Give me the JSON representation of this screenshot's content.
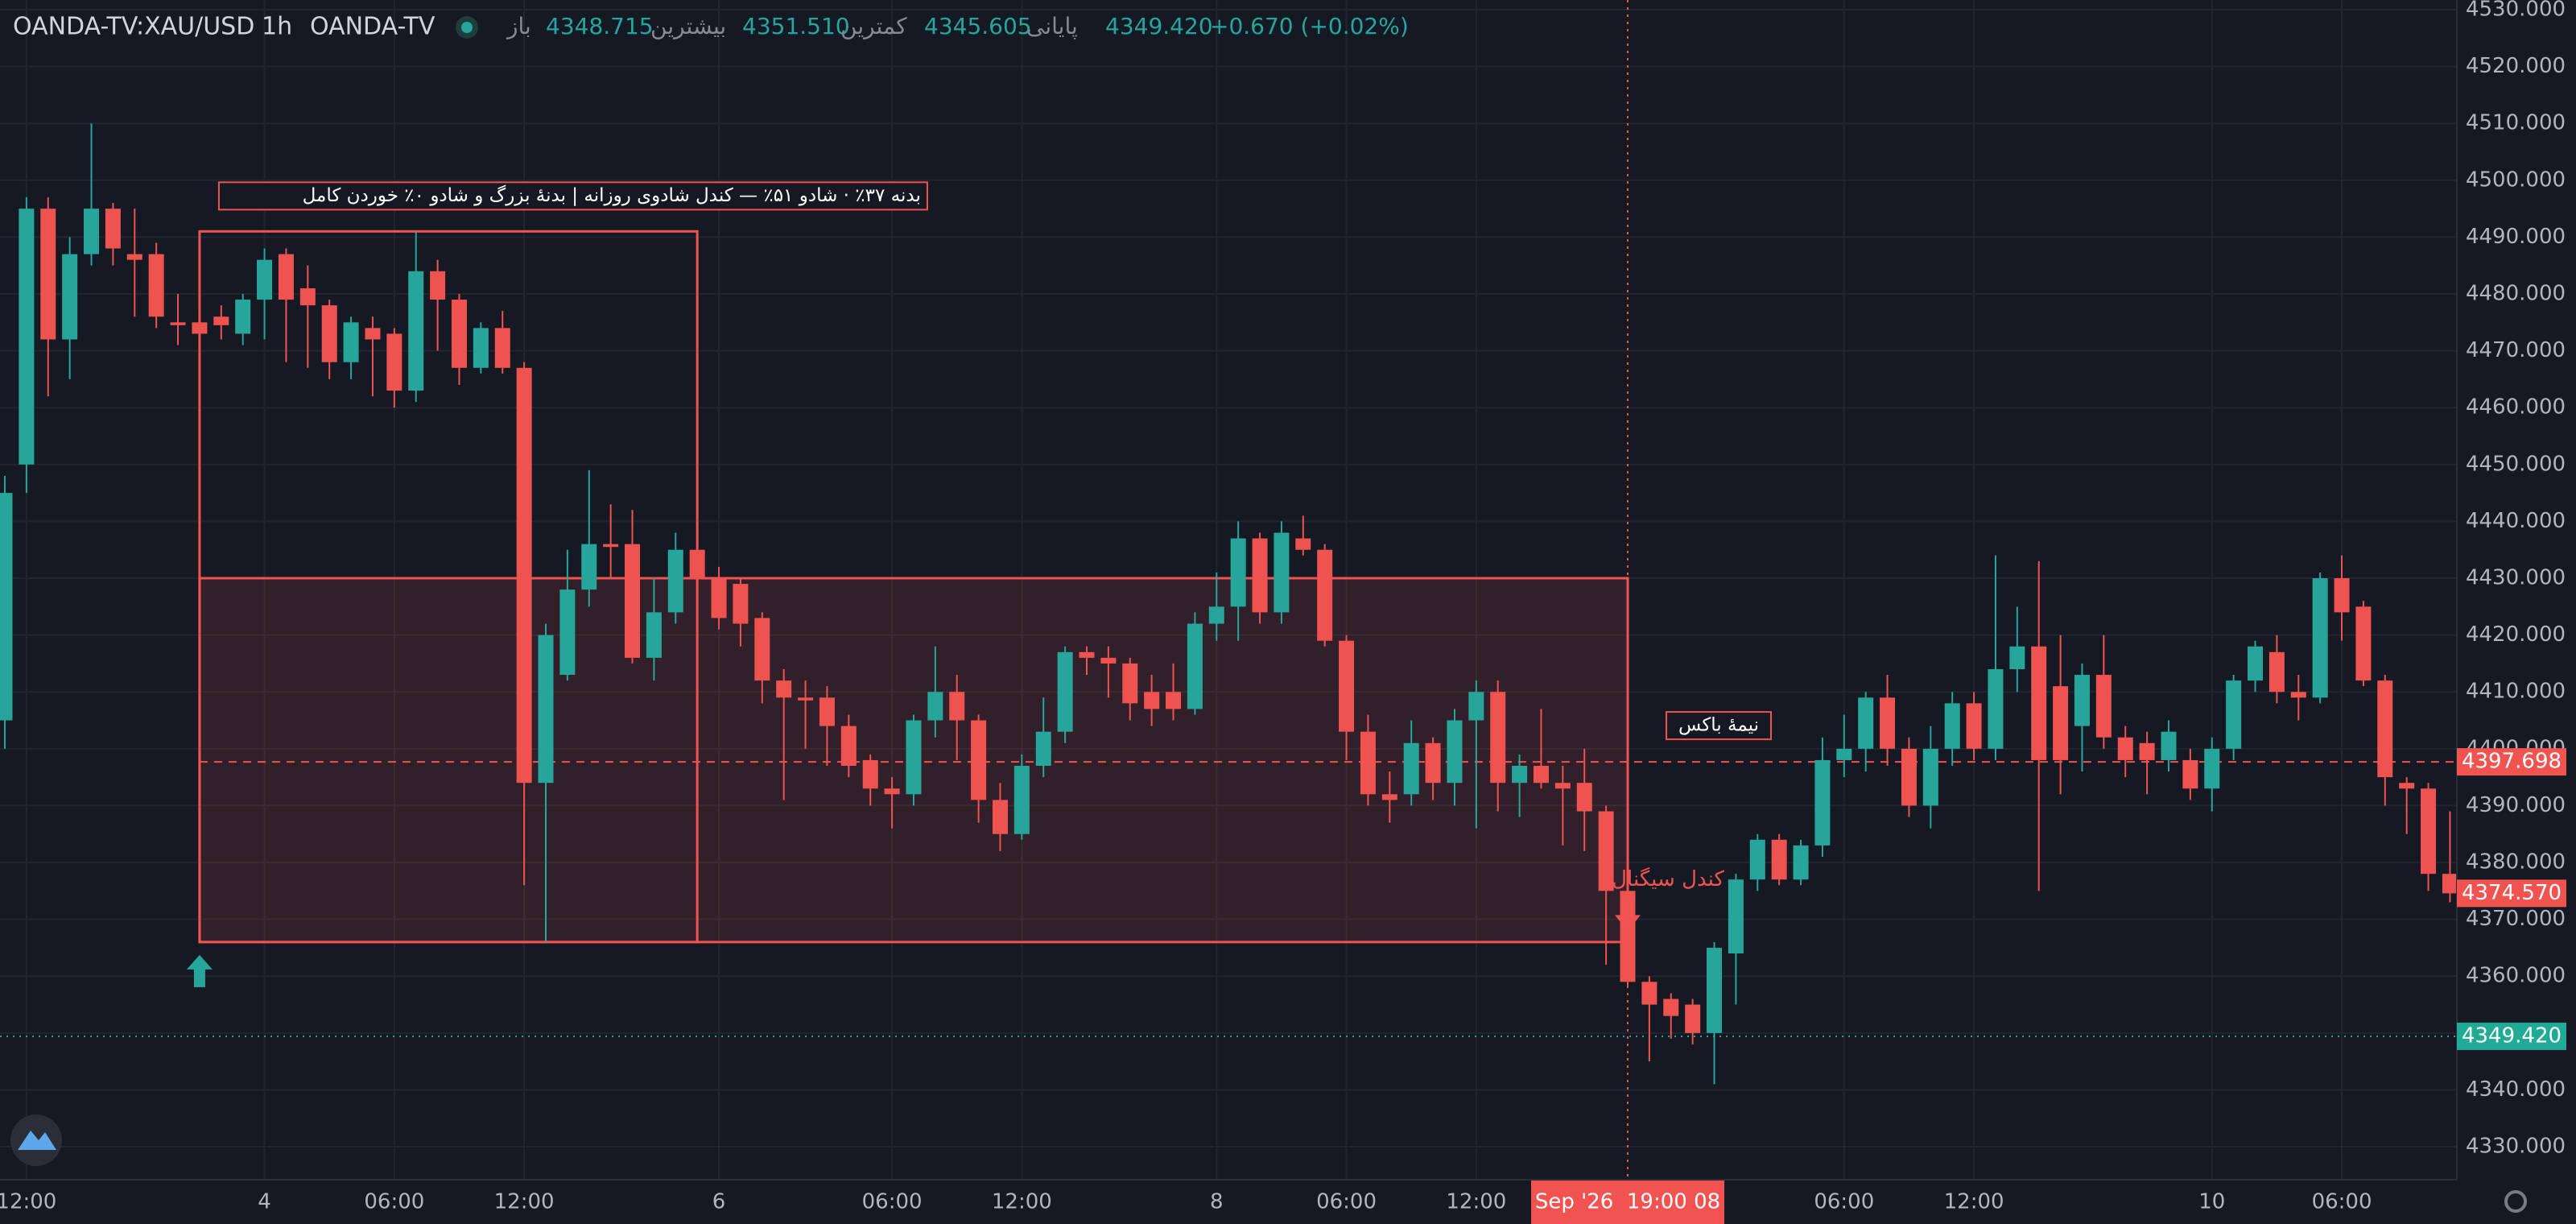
{
  "header": {
    "symbol": "OANDA-TV:XAU/USD",
    "interval": "1h",
    "source": "OANDA-TV",
    "ohlc": [
      {
        "label": "باز",
        "value": "4348.715"
      },
      {
        "label": "بیشترین",
        "value": "4351.510"
      },
      {
        "label": "کمترین",
        "value": "4345.605"
      },
      {
        "label": "پایانی",
        "value": "4349.420"
      }
    ],
    "change": "+0.670 (+0.02%)"
  },
  "chart_data": {
    "type": "candlestick",
    "up_color": "#26a69a",
    "down_color": "#ef5350",
    "grid": true,
    "categories": [
      null,
      "12:00",
      null,
      null,
      null,
      null,
      null,
      null,
      null,
      null,
      null,
      null,
      "4",
      null,
      null,
      null,
      null,
      null,
      "06:00",
      null,
      null,
      null,
      null,
      null,
      "12:00",
      null,
      null,
      null,
      null,
      null,
      null,
      null,
      null,
      "6",
      null,
      null,
      null,
      null,
      null,
      null,
      null,
      "06:00",
      null,
      null,
      null,
      null,
      null,
      "12:00",
      null,
      null,
      null,
      null,
      null,
      null,
      null,
      null,
      "8",
      null,
      null,
      null,
      null,
      null,
      "06:00",
      null,
      null,
      null,
      null,
      null,
      "12:00",
      null,
      null,
      null,
      null,
      null,
      null,
      null,
      null,
      null,
      null,
      null,
      null,
      null,
      null,
      null,
      null,
      "06:00",
      null,
      null,
      null,
      null,
      null,
      "12:00",
      null,
      null,
      null,
      null,
      null,
      null,
      null,
      null,
      null,
      null,
      "10",
      null,
      null,
      null,
      null,
      null,
      "06:00",
      null,
      null,
      null,
      null,
      null
    ],
    "open": [
      4405,
      4450,
      4495,
      4472,
      4487,
      4495,
      4487,
      4487,
      4475,
      4475,
      4476,
      4473,
      4479,
      4487,
      4481,
      4478,
      4468,
      4474,
      4473,
      4463,
      4484,
      4479,
      4467,
      4474,
      4467,
      4394,
      4413,
      4428,
      4436,
      4436,
      4416,
      4424,
      4435,
      4430,
      4429,
      4423,
      4412,
      4409,
      4409,
      4404,
      4398,
      4393,
      4392,
      4405,
      4410,
      4405,
      4391,
      4385,
      4397,
      4403,
      4417,
      4416,
      4415,
      4410,
      4410,
      4407,
      4422,
      4425,
      4437,
      4424,
      4437,
      4435,
      4419,
      4403,
      4392,
      4392,
      4401,
      4394,
      4405,
      4410,
      4394,
      4397,
      4394,
      4394,
      4389,
      4375,
      4359,
      4356,
      4355,
      4350,
      4364,
      4377,
      4384,
      4377,
      4383,
      4398,
      4400,
      4409,
      4400,
      4390,
      4400,
      4408,
      4400,
      4414,
      4418,
      4411,
      4404,
      4413,
      4402,
      4401,
      4398,
      4398,
      4393,
      4400,
      4412,
      4417,
      4410,
      4409,
      4430,
      4425,
      4412,
      4394,
      4393,
      4378
    ],
    "high": [
      4448,
      4497,
      4497,
      4490,
      4510,
      4496,
      4495,
      4489,
      4480,
      4477,
      4478,
      4480,
      4488,
      4488,
      4485,
      4479,
      4476,
      4476,
      4474,
      4491,
      4486,
      4480,
      4475,
      4477,
      4468,
      4422,
      4435,
      4449,
      4443,
      4442,
      4430,
      4438,
      4436,
      4432,
      4430,
      4424,
      4414,
      4412,
      4411,
      4406,
      4399,
      4395,
      4406,
      4418,
      4413,
      4406,
      4394,
      4399,
      4409,
      4418,
      4418,
      4418,
      4416,
      4413,
      4415,
      4424,
      4431,
      4440,
      4438,
      4440,
      4441,
      4436,
      4420,
      4406,
      4396,
      4405,
      4402,
      4407,
      4412,
      4412,
      4399,
      4407,
      4397,
      4400,
      4390,
      4377,
      4360,
      4357,
      4356,
      4366,
      4378,
      4385,
      4385,
      4384,
      4402,
      4406,
      4410,
      4413,
      4402,
      4404,
      4410,
      4410,
      4434,
      4425,
      4433,
      4420,
      4415,
      4420,
      4404,
      4403,
      4405,
      4400,
      4402,
      4413,
      4419,
      4420,
      4413,
      4431,
      4434,
      4426,
      4413,
      4395,
      4394,
      4389
    ],
    "low": [
      4400,
      4445,
      4462,
      4465,
      4485,
      4485,
      4476,
      4474,
      4471,
      4470,
      4472,
      4471,
      4472,
      4468,
      4467,
      4465,
      4465,
      4462,
      4460,
      4461,
      4470,
      4464,
      4466,
      4466,
      4376,
      4366,
      4412,
      4425,
      4430,
      4415,
      4412,
      4422,
      4424,
      4421,
      4418,
      4408,
      4391,
      4400,
      4397,
      4395,
      4390,
      4386,
      4390,
      4402,
      4398,
      4387,
      4382,
      4384,
      4395,
      4401,
      4413,
      4409,
      4405,
      4404,
      4405,
      4406,
      4419,
      4419,
      4422,
      4422,
      4434,
      4418,
      4398,
      4390,
      4387,
      4390,
      4391,
      4390,
      4386,
      4389,
      4388,
      4393,
      4383,
      4382,
      4362,
      4358,
      4345,
      4349,
      4348,
      4341,
      4355,
      4375,
      4376,
      4376,
      4381,
      4395,
      4396,
      4397,
      4388,
      4386,
      4397,
      4398,
      4398,
      4410,
      4375,
      4392,
      4396,
      4400,
      4395,
      4392,
      4396,
      4391,
      4389,
      4398,
      4410,
      4408,
      4405,
      4408,
      4419,
      4411,
      4390,
      4385,
      4375,
      4373
    ],
    "close": [
      4445,
      4495,
      4472,
      4487,
      4495,
      4488,
      4486,
      4476,
      4474.5,
      4473,
      4474.5,
      4479,
      4486,
      4479,
      4478,
      4468,
      4475,
      4472,
      4463,
      4484,
      4479,
      4467,
      4474,
      4467,
      4394,
      4420,
      4428,
      4436,
      4435.5,
      4416,
      4424,
      4435,
      4430,
      4423,
      4422,
      4412,
      4409,
      4408.5,
      4404,
      4397,
      4393,
      4392,
      4405,
      4410,
      4405,
      4391,
      4385,
      4397,
      4403,
      4417,
      4416,
      4415,
      4408,
      4407,
      4407,
      4422,
      4425,
      4437,
      4424,
      4438,
      4435,
      4419,
      4403,
      4392,
      4391,
      4401,
      4394,
      4405,
      4410,
      4394,
      4397,
      4394,
      4393,
      4389,
      4375,
      4359,
      4355,
      4353,
      4350,
      4365,
      4377,
      4384,
      4377,
      4383,
      4398,
      4400,
      4409,
      4400,
      4390,
      4400,
      4408,
      4400,
      4414,
      4418,
      4398,
      4398,
      4413,
      4402,
      4398,
      4398,
      4403,
      4393,
      4400,
      4412,
      4418,
      4410,
      4409,
      4430,
      4424,
      4412,
      4395,
      4393,
      4378,
      4374.57
    ],
    "ylim": [
      4324.2,
      4531.7
    ],
    "yticks": [
      {
        "value": 4530,
        "label": "4530.000"
      },
      {
        "value": 4520,
        "label": "4520.000"
      },
      {
        "value": 4510,
        "label": "4510.000"
      },
      {
        "value": 4500,
        "label": "4500.000"
      },
      {
        "value": 4490,
        "label": "4490.000"
      },
      {
        "value": 4480,
        "label": "4480.000"
      },
      {
        "value": 4470,
        "label": "4470.000"
      },
      {
        "value": 4460,
        "label": "4460.000"
      },
      {
        "value": 4450,
        "label": "4450.000"
      },
      {
        "value": 4440,
        "label": "4440.000"
      },
      {
        "value": 4430,
        "label": "4430.000"
      },
      {
        "value": 4420,
        "label": "4420.000"
      },
      {
        "value": 4410,
        "label": "4410.000"
      },
      {
        "value": 4400,
        "label": "4400.000"
      },
      {
        "value": 4390,
        "label": "4390.000"
      },
      {
        "value": 4380,
        "label": "4380.000"
      },
      {
        "value": 4370,
        "label": "4370.000"
      },
      {
        "value": 4360,
        "label": "4360.000"
      },
      {
        "value": 4350,
        "label": "4350.000"
      },
      {
        "value": 4340,
        "label": "4340.000"
      },
      {
        "value": 4330,
        "label": "4330.000"
      }
    ],
    "price_lines": {
      "values": [
        4397.698,
        4374.57,
        4349.42
      ],
      "value_labels": [
        "4397.698",
        "4374.570",
        "4349.420"
      ],
      "colors": [
        "#f05350",
        "#f05350",
        "#26a69a"
      ],
      "styles": [
        "dashed",
        "none",
        "dotted"
      ]
    },
    "boxes": [
      {
        "start": 9,
        "end": 32,
        "top": 4491,
        "bottom": 4366,
        "label": "بدنه ۳۷٪ · شادو ۵۱٪ — کندل شادوی روزانه | بدنهٔ بزرگ و شادو ۰٪ خوردن کامل",
        "filled": false
      },
      {
        "start": 9,
        "end": 75,
        "top": 4430,
        "bottom": 4366,
        "filled": true
      }
    ],
    "midline_label": "نیمهٔ باکس",
    "signal": {
      "index": 75,
      "label": "کندل سیگنال"
    },
    "crosshair": {
      "index": 75,
      "label": "Sep '26  19:00 08"
    }
  }
}
